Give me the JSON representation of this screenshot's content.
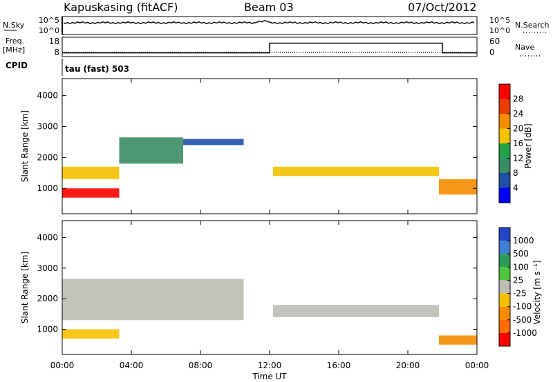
{
  "header": {
    "station": "Kapuskasing (fitACF)",
    "beam": "Beam 03",
    "date": "07/Oct/2012"
  },
  "strip1": {
    "left_label": "N.Sky",
    "left_ticks": [
      "10^5",
      "10^0"
    ],
    "right_ticks": [
      "10^5",
      "10^0"
    ],
    "right_label": "N.Search"
  },
  "strip2": {
    "left_label_top": "Freq.",
    "left_label_unit": "[MHz]",
    "left_ticks": [
      "18",
      "8"
    ],
    "right_ticks": [
      "60",
      "0"
    ],
    "right_label": "Nave"
  },
  "strip3": {
    "cpid_label": "CPID",
    "cpid_text": "tau (fast) 503"
  },
  "x_axis": {
    "label": "Time UT",
    "ticks": [
      "00:00",
      "04:00",
      "08:00",
      "12:00",
      "16:00",
      "20:00",
      "00:00"
    ]
  },
  "power_panel": {
    "ylabel": "Slant Range [km]",
    "yticks": [
      "4000",
      "3000",
      "2000",
      "1000"
    ],
    "colorbar_label": "Power [dB]",
    "colorbar_ticks": [
      "28",
      "24",
      "20",
      "16",
      "12",
      "8",
      "4"
    ],
    "colors": [
      "#0000ff",
      "#1f4fa8",
      "#3a8c66",
      "#22a34a",
      "#f2c100",
      "#f58c00",
      "#e83c00",
      "#ff0000"
    ]
  },
  "velocity_panel": {
    "ylabel": "Slant Range [km]",
    "yticks": [
      "4000",
      "3000",
      "2000",
      "1000"
    ],
    "colorbar_label": "Velocity [m s⁻¹]",
    "colorbar_ticks": [
      "1000",
      "500",
      "100",
      "25",
      "-25",
      "-100",
      "-500",
      "-1000"
    ],
    "colors": [
      "#2346c8",
      "#3d7fd0",
      "#2d9a5a",
      "#4fc63a",
      "#bebcb4",
      "#f5c000",
      "#f58c00",
      "#ff6a00",
      "#ff0000"
    ]
  },
  "chart_data": {
    "type": "heatmap",
    "x_range_hours": [
      0,
      24
    ],
    "y_range_km": [
      180,
      4550
    ],
    "frequency_mhz": [
      {
        "from_hour": 0,
        "to_hour": 12,
        "value": 8.5
      },
      {
        "from_hour": 12,
        "to_hour": 22,
        "value": 15
      },
      {
        "from_hour": 22,
        "to_hour": 24,
        "value": 8.5
      }
    ],
    "power_db_bands": [
      {
        "start_hour": 0,
        "end_hour": 3.3,
        "range_start_km": 700,
        "range_end_km": 1000,
        "power_db": 28
      },
      {
        "start_hour": 0,
        "end_hour": 3.3,
        "range_start_km": 1300,
        "range_end_km": 1700,
        "power_db": 18
      },
      {
        "start_hour": 3.3,
        "end_hour": 7,
        "range_start_km": 1800,
        "range_end_km": 2650,
        "power_db": 10
      },
      {
        "start_hour": 7,
        "end_hour": 10.5,
        "range_start_km": 2400,
        "range_end_km": 2600,
        "power_db": 6
      },
      {
        "start_hour": 12.2,
        "end_hour": 21.8,
        "range_start_km": 1400,
        "range_end_km": 1700,
        "power_db": 16
      },
      {
        "start_hour": 21.8,
        "end_hour": 24,
        "range_start_km": 800,
        "range_end_km": 1300,
        "power_db": 22
      }
    ],
    "velocity_bands": [
      {
        "start_hour": 0,
        "end_hour": 3.3,
        "range_start_km": 700,
        "range_end_km": 1000,
        "velocity_ms": -100
      },
      {
        "start_hour": 0,
        "end_hour": 10.5,
        "range_start_km": 1300,
        "range_end_km": 2650,
        "velocity_ms": 0
      },
      {
        "start_hour": 12.2,
        "end_hour": 21.8,
        "range_start_km": 1400,
        "range_end_km": 1800,
        "velocity_ms": 0
      },
      {
        "start_hour": 21.8,
        "end_hour": 24,
        "range_start_km": 500,
        "range_end_km": 800,
        "velocity_ms": -500
      }
    ]
  }
}
